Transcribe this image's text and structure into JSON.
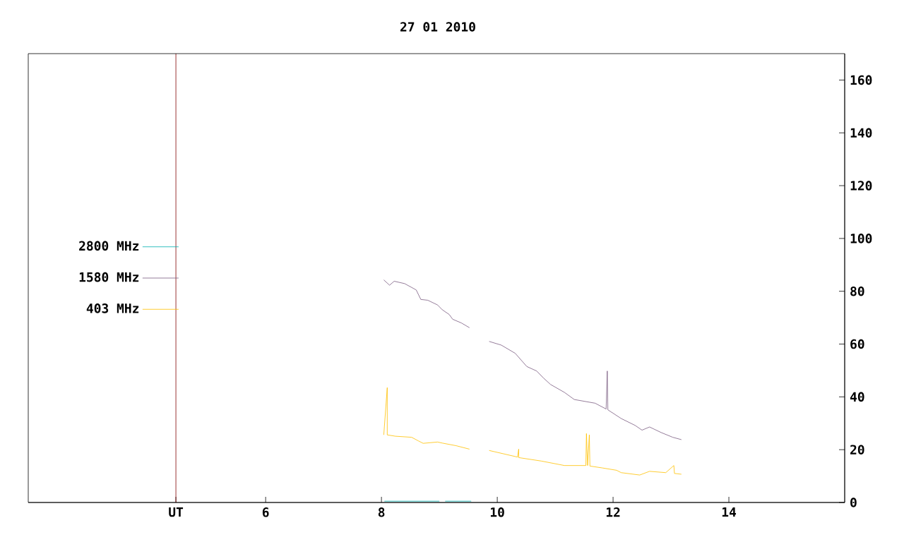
{
  "chart_data": {
    "type": "line",
    "title": "27 01 2010",
    "xlim": [
      1.9,
      16
    ],
    "xticks": [
      {
        "value": 4.45,
        "label": "UT"
      },
      6,
      8,
      10,
      12,
      14
    ],
    "ylim": [
      0,
      170
    ],
    "yticks": [
      0,
      20,
      40,
      60,
      80,
      100,
      120,
      140,
      160
    ],
    "grid": false,
    "legend": "left",
    "marker": "none",
    "line_style": "solid",
    "ref_lines": [
      {
        "axis": "x",
        "value": 4.45,
        "color": "#800000"
      }
    ],
    "series": [
      {
        "name": "2800 MHz",
        "color": "#00b0b0",
        "x": [
          8.05,
          9.0,
          9.05,
          9.1,
          9.55
        ],
        "values": [
          0.5,
          0.5,
          null,
          0.5,
          0.5
        ]
      },
      {
        "name": "1580 MHz",
        "color": "#7a5c80",
        "x": [
          8.04,
          8.14,
          8.22,
          8.4,
          8.6,
          8.68,
          8.8,
          8.97,
          9.05,
          9.17,
          9.23,
          9.38,
          9.52,
          9.7,
          9.86,
          10.07,
          10.31,
          10.51,
          10.68,
          10.8,
          10.92,
          11.16,
          11.33,
          11.69,
          11.88,
          11.9,
          11.91,
          12.14,
          12.38,
          12.5,
          12.63,
          12.83,
          13.03,
          13.18
        ],
        "values": [
          84.3,
          82.3,
          83.8,
          82.9,
          80.5,
          76.9,
          76.6,
          74.8,
          73.0,
          71.2,
          69.4,
          68.0,
          66.2,
          null,
          61.0,
          59.6,
          56.5,
          51.5,
          49.8,
          47.1,
          44.7,
          41.7,
          39.0,
          37.6,
          35.4,
          49.8,
          35.1,
          31.8,
          29.2,
          27.4,
          28.6,
          26.5,
          24.7,
          23.8
        ]
      },
      {
        "name": "403 MHz",
        "color": "#ffc000",
        "x": [
          8.04,
          8.1,
          8.1,
          8.1,
          8.24,
          8.52,
          8.64,
          8.72,
          8.97,
          9.05,
          9.29,
          9.52,
          9.7,
          9.86,
          10.35,
          10.37,
          10.37,
          10.76,
          11.16,
          11.53,
          11.54,
          11.56,
          11.59,
          11.6,
          11.81,
          12.06,
          12.14,
          12.46,
          12.63,
          12.91,
          13.05,
          13.06,
          13.18
        ],
        "values": [
          25.6,
          43.5,
          26.1,
          25.6,
          25.1,
          24.7,
          23.3,
          22.4,
          22.9,
          22.5,
          21.5,
          20.2,
          null,
          19.7,
          17.2,
          20.2,
          17.0,
          15.7,
          14.0,
          14.0,
          26.1,
          14.0,
          25.6,
          13.8,
          13.1,
          12.2,
          11.3,
          10.4,
          11.8,
          11.3,
          14.0,
          11.0,
          10.7
        ]
      }
    ]
  }
}
